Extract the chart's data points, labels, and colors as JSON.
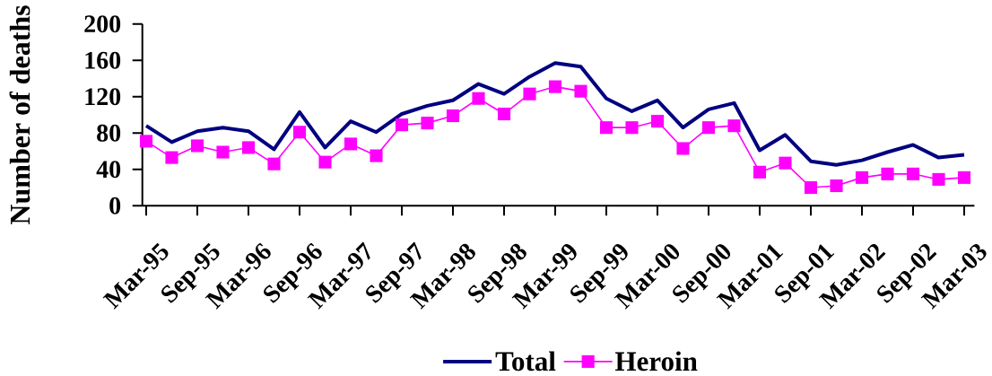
{
  "chart_data": {
    "type": "line",
    "ylabel": "Number of deaths",
    "categories": [
      "Mar-95",
      null,
      "Sep-95",
      null,
      "Mar-96",
      null,
      "Sep-96",
      null,
      "Mar-97",
      null,
      "Sep-97",
      null,
      "Mar-98",
      null,
      "Sep-98",
      null,
      "Mar-99",
      null,
      "Sep-99",
      null,
      "Mar-00",
      null,
      "Sep-00",
      null,
      "Mar-01",
      null,
      "Sep-01",
      null,
      "Mar-02",
      null,
      "Sep-02",
      null,
      "Mar-03"
    ],
    "series": [
      {
        "name": "Total",
        "color": "#000080",
        "marker": "none",
        "values": [
          88,
          70,
          82,
          86,
          82,
          62,
          103,
          64,
          93,
          81,
          101,
          110,
          116,
          134,
          123,
          142,
          157,
          153,
          118,
          104,
          116,
          86,
          106,
          113,
          61,
          78,
          49,
          45,
          50,
          59,
          67,
          53,
          56
        ]
      },
      {
        "name": "Heroin",
        "color": "#ff00ff",
        "marker": "square",
        "values": [
          71,
          53,
          66,
          59,
          64,
          46,
          81,
          48,
          68,
          55,
          89,
          91,
          99,
          118,
          101,
          123,
          131,
          126,
          86,
          86,
          93,
          63,
          86,
          88,
          37,
          47,
          20,
          22,
          31,
          35,
          35,
          29,
          31
        ]
      }
    ],
    "ylim": [
      0,
      200
    ],
    "yticks": [
      0,
      40,
      80,
      120,
      160,
      200
    ],
    "legend": "bottom"
  }
}
